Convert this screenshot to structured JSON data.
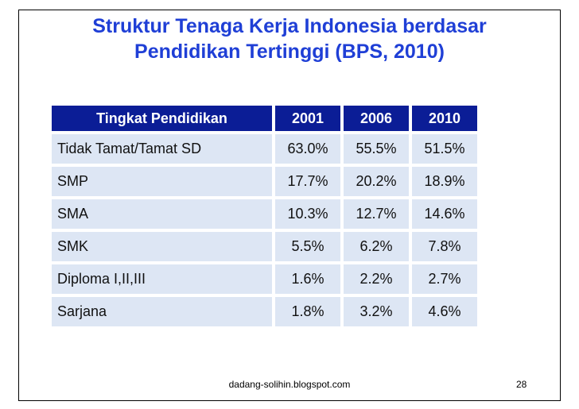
{
  "title": {
    "line1": "Struktur Tenaga Kerja Indonesia berdasar",
    "line2": "Pendidikan Tertinggi (BPS, 2010)"
  },
  "table": {
    "headers": [
      "Tingkat Pendidikan",
      "2001",
      "2006",
      "2010"
    ],
    "rows": [
      [
        "Tidak Tamat/Tamat SD",
        "63.0%",
        "55.5%",
        "51.5%"
      ],
      [
        "SMP",
        "17.7%",
        "20.2%",
        "18.9%"
      ],
      [
        "SMA",
        "10.3%",
        "12.7%",
        "14.6%"
      ],
      [
        "SMK",
        "5.5%",
        "6.2%",
        "7.8%"
      ],
      [
        "Diploma I,II,III",
        "1.6%",
        "2.2%",
        "2.7%"
      ],
      [
        "Sarjana",
        "1.8%",
        "3.2%",
        "4.6%"
      ]
    ]
  },
  "footer": {
    "source": "dadang-solihin.blogspot.com",
    "page": "28"
  },
  "colors": {
    "title": "#1f3fd6",
    "header_bg": "#0b1d96",
    "cell_bg": "#dde6f4"
  }
}
